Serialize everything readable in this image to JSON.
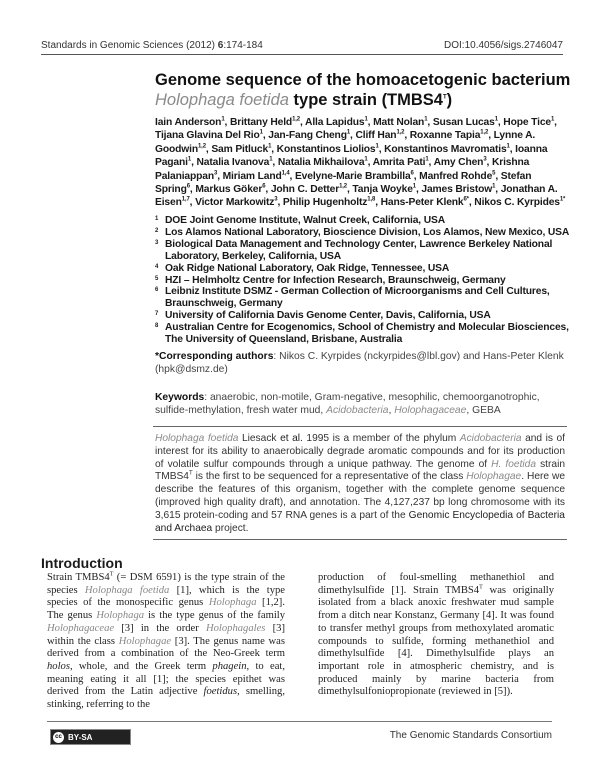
{
  "header": {
    "journal": "Standards in Genomic Sciences (2012) ",
    "volume": "6",
    "pages": ":174-184",
    "doi": "DOI:10.4056/sigs.2746047"
  },
  "title": {
    "line1": "Genome sequence of the homoacetogenic bacterium",
    "genus": "Holophaga foetida",
    "rest": " type strain (TMBS4",
    "sup": "T",
    "close": ")"
  },
  "authors": [
    {
      "name": "Iain Anderson",
      "sup": "1"
    },
    {
      "name": "Brittany Held",
      "sup": "1,2"
    },
    {
      "name": "Alla Lapidus",
      "sup": "1"
    },
    {
      "name": "Matt Nolan",
      "sup": "1"
    },
    {
      "name": "Susan Lucas",
      "sup": "1"
    },
    {
      "name": "Hope Tice",
      "sup": "1"
    },
    {
      "name": "Tijana Glavina Del Rio",
      "sup": "1"
    },
    {
      "name": "Jan-Fang Cheng",
      "sup": "1"
    },
    {
      "name": "Cliff Han",
      "sup": "1,2"
    },
    {
      "name": "Roxanne Tapia",
      "sup": "1,2"
    },
    {
      "name": "Lynne A. Goodwin",
      "sup": "1,2"
    },
    {
      "name": "Sam Pitluck",
      "sup": "1"
    },
    {
      "name": "Konstantinos Liolios",
      "sup": "1"
    },
    {
      "name": "Konstantinos Mavromatis",
      "sup": "1"
    },
    {
      "name": "Ioanna Pagani",
      "sup": "1"
    },
    {
      "name": "Natalia Ivanova",
      "sup": "1"
    },
    {
      "name": "Natalia Mikhailova",
      "sup": "1"
    },
    {
      "name": "Amrita Pati",
      "sup": "1"
    },
    {
      "name": "Amy Chen",
      "sup": "3"
    },
    {
      "name": "Krishna Palaniappan",
      "sup": "3"
    },
    {
      "name": "Miriam Land",
      "sup": "1,4"
    },
    {
      "name": "Evelyne-Marie Brambilla",
      "sup": "6"
    },
    {
      "name": "Manfred Rohde",
      "sup": "5"
    },
    {
      "name": "Stefan Spring",
      "sup": "6"
    },
    {
      "name": "Markus Göker",
      "sup": "6"
    },
    {
      "name": "John C. Detter",
      "sup": "1,2"
    },
    {
      "name": "Tanja Woyke",
      "sup": "1"
    },
    {
      "name": "James Bristow",
      "sup": "1"
    },
    {
      "name": "Jonathan A. Eisen",
      "sup": "1,7"
    },
    {
      "name": "Victor Markowitz",
      "sup": "3"
    },
    {
      "name": "Philip Hugenholtz",
      "sup": "1,8"
    },
    {
      "name": "Hans-Peter Klenk",
      "sup": "6*"
    },
    {
      "name": "Nikos C. Kyrpides",
      "sup": "1*"
    }
  ],
  "affiliations": [
    {
      "n": "1",
      "text": "DOE Joint Genome Institute, Walnut Creek, California, USA"
    },
    {
      "n": "2",
      "text": "Los Alamos National Laboratory, Bioscience Division, Los Alamos, New Mexico, USA"
    },
    {
      "n": "3",
      "text": "Biological Data Management and Technology Center, Lawrence Berkeley National Laboratory, Berkeley, California, USA"
    },
    {
      "n": "4",
      "text": "Oak Ridge National Laboratory, Oak Ridge, Tennessee, USA"
    },
    {
      "n": "5",
      "text": "HZI – Helmholtz Centre for Infection Research, Braunschweig, Germany"
    },
    {
      "n": "6",
      "text": "Leibniz Institute DSMZ - German Collection of Microorganisms and Cell Cultures, Braunschweig, Germany"
    },
    {
      "n": "7",
      "text": "University of California Davis Genome Center, Davis, California, USA"
    },
    {
      "n": "8",
      "text": "Australian Centre for Ecogenomics, School of Chemistry and Molecular Biosciences, The University of Queensland, Brisbane, Australia"
    }
  ],
  "corresponding": {
    "label": "*Corresponding authors",
    "text": ": Nikos C. Kyrpides (nckyrpides@lbl.gov) and Hans-Peter Klenk (hpk@dsmz.de)"
  },
  "keywords": {
    "label": "Keywords",
    "segments": [
      {
        "t": ": anaerobic, non-motile, Gram-negative, mesophilic, chemoorganotrophic, sulfide-methylation, fresh water mud, "
      },
      {
        "t": "Acidobacteria",
        "i": 1
      },
      {
        "t": ", "
      },
      {
        "t": "Holophagaceae",
        "i": 1
      },
      {
        "t": ", GEBA"
      }
    ]
  },
  "abstract": [
    {
      "t": "Holophaga foetida",
      "i": 1
    },
    {
      "t": " Liesack "
    },
    {
      "t": "et al.",
      "b": 1
    },
    {
      "t": " 1995 is a member of the phylum "
    },
    {
      "t": "Acidobacteria",
      "i": 1
    },
    {
      "t": " and is of interest for its ability to anaerobically degrade aromatic compounds and for its production of volatile sulfur compounds through a unique pathway. The genome of "
    },
    {
      "t": "H. foetida",
      "i": 1
    },
    {
      "t": " strain TMBS4"
    },
    {
      "t": "T",
      "s": 1
    },
    {
      "t": " is the first to be sequenced for a representative of the class "
    },
    {
      "t": "Holophagae",
      "i": 1
    },
    {
      "t": ". Here we describe the features of this organism, together with the complete genome sequence (improved high quality draft), and annotation. The 4,127,237 bp long chromosome with its 3,615 protein-coding and 57 RNA genes is a part of the "
    },
    {
      "t": "Genomic Encyclopedia of Bacteria and Archaea",
      "b": 1
    },
    {
      "t": " project."
    }
  ],
  "introduction": {
    "heading": "Introduction",
    "left": [
      {
        "t": "Strain TMBS4"
      },
      {
        "t": "T",
        "s": 1
      },
      {
        "t": " (= DSM 6591) is the type strain of the species "
      },
      {
        "t": "Holophaga foetida",
        "i": 1
      },
      {
        "t": " [1], which is the type species of the monospecific genus "
      },
      {
        "t": "Holophaga",
        "i": 1
      },
      {
        "t": " [1,2]. The genus "
      },
      {
        "t": "Holophaga",
        "i": 1
      },
      {
        "t": " is the type genus of the family "
      },
      {
        "t": "Holophagaceae",
        "i": 1
      },
      {
        "t": " [3] in the order "
      },
      {
        "t": "Holophagales",
        "i": 1
      },
      {
        "t": " [3] within the class "
      },
      {
        "t": "Holophagae",
        "i": 1
      },
      {
        "t": " [3]. The genus name was derived from a combination of the Neo-Greek term "
      },
      {
        "t": "holos",
        "b": 1
      },
      {
        "t": ", whole, and the Greek term "
      },
      {
        "t": "phagein",
        "b": 1
      },
      {
        "t": ", to eat, meaning eating it all [1]; the species epithet was derived from the Latin adjective "
      },
      {
        "t": "foetidus",
        "b": 1
      },
      {
        "t": ", smelling, stinking, referring to the"
      }
    ],
    "right": [
      {
        "t": "production of foul-smelling methanethiol and dimethylsulfide [1]. Strain TMBS4"
      },
      {
        "t": "T",
        "s": 1
      },
      {
        "t": " was originally isolated from a black anoxic freshwater mud sample from a ditch near Konstanz, Germany [4]. It was found to transfer methyl groups from methoxylated aromatic compounds to sulfide, forming methanethiol and dimethylsulfide [4]. Dimethylsulfide plays an important role in atmospheric chemistry, and is produced mainly by marine bacteria from dimethylsulfoniopropionate (reviewed in [5])."
      }
    ]
  },
  "footer": {
    "license": "BY-SA",
    "cc": "cc",
    "publisher": "The Genomic Standards Consortium"
  }
}
